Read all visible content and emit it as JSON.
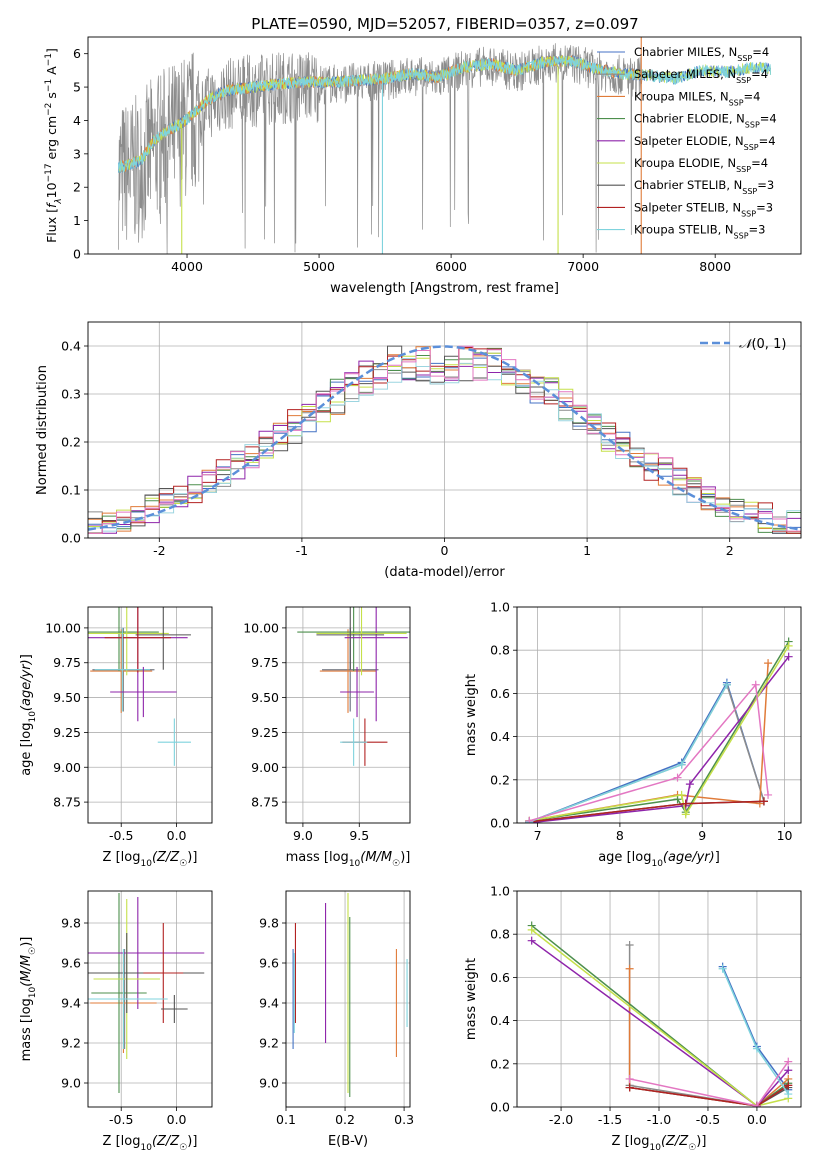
{
  "page_title": "PLATE=0590, MJD=52057, FIBERID=0357, z=0.097",
  "legend": {
    "models": [
      {
        "name": "Chabrier MILES",
        "nssp": "4",
        "color": "#4472c4"
      },
      {
        "name": "Salpeter MILES",
        "nssp": "4",
        "color": "#8c8c8c"
      },
      {
        "name": "Kroupa MILES",
        "nssp": "4",
        "color": "#e07b39"
      },
      {
        "name": "Chabrier ELODIE",
        "nssp": "4",
        "color": "#4d8f4d"
      },
      {
        "name": "Salpeter ELODIE",
        "nssp": "4",
        "color": "#8e24aa"
      },
      {
        "name": "Kroupa ELODIE",
        "nssp": "4",
        "color": "#c5e04a"
      },
      {
        "name": "Chabrier STELIB",
        "nssp": "3",
        "color": "#555555"
      },
      {
        "name": "Salpeter STELIB",
        "nssp": "3",
        "color": "#b22222"
      },
      {
        "name": "Kroupa STELIB",
        "nssp": "3",
        "color": "#7fd3dd"
      }
    ],
    "nssp_prefix": "N",
    "nssp_sub": "SSP",
    "nssp_eq": "="
  },
  "chart_data": [
    {
      "id": "spectrum",
      "type": "line",
      "xlabel": "wavelength [Angstrom, rest frame]",
      "ylabel": "Flux [f_λ 10^-17 erg cm^-2 s^-1 A^-1]",
      "xlim": [
        3250,
        8650
      ],
      "ylim": [
        0,
        6.5
      ],
      "xticks": [
        4000,
        5000,
        6000,
        7000,
        8000
      ],
      "yticks": [
        0,
        1,
        2,
        3,
        4,
        5,
        6
      ],
      "grid": false,
      "legend_position": "right",
      "continuum_knots": {
        "x": [
          3480,
          3550,
          3650,
          3750,
          3850,
          3950,
          4050,
          4150,
          4300,
          4500,
          4700,
          4900,
          5100,
          5300,
          5500,
          5700,
          5900,
          6100,
          6300,
          6500,
          6700,
          6900,
          7100,
          7300,
          7500,
          7700,
          7900,
          8100,
          8300,
          8500
        ],
        "y": [
          2.6,
          2.65,
          2.8,
          3.4,
          3.7,
          3.9,
          4.2,
          4.6,
          4.9,
          5.0,
          5.1,
          5.15,
          5.15,
          5.2,
          5.25,
          5.4,
          5.3,
          5.6,
          5.7,
          5.5,
          5.75,
          5.8,
          5.55,
          5.4,
          5.35,
          5.25,
          5.5,
          5.45,
          5.6,
          5.5
        ]
      },
      "noise_range": {
        "x": [
          3480,
          7450
        ],
        "ymax": 6.5
      },
      "spikes": [
        {
          "x": 3960,
          "y_from": 0,
          "y_to": 3.9,
          "series": "Kroupa ELODIE"
        },
        {
          "x": 5480,
          "y_from": 0,
          "y_to": 5.3,
          "series": "Kroupa STELIB"
        },
        {
          "x": 6810,
          "y_from": 0,
          "y_to": 5.6,
          "series": "Kroupa ELODIE"
        },
        {
          "x": 7440,
          "y_from": 0,
          "y_to": 6.5,
          "series": "Kroupa MILES"
        }
      ]
    },
    {
      "id": "residuals",
      "type": "histogram",
      "xlabel": "(data-model)/error",
      "ylabel": "Normed distribution",
      "xlim": [
        -2.5,
        2.5
      ],
      "ylim": [
        0,
        0.45
      ],
      "xticks": [
        -2,
        -1,
        0,
        1,
        2
      ],
      "yticks": [
        0.0,
        0.1,
        0.2,
        0.3,
        0.4
      ],
      "grid": true,
      "bins": {
        "start": -2.5,
        "width": 0.1,
        "count": 50
      },
      "reference_curve": {
        "name": "N(0,1)",
        "label_prefix": "𝒩",
        "label_args": "(0, 1)",
        "mean": 0,
        "sigma": 1,
        "color": "#5b8fd9",
        "style": "dashed"
      },
      "legend_position": "top-right"
    },
    {
      "id": "age-vs-Z",
      "type": "errorbar",
      "xlabel": "Z [log10(Z/Z☉)]",
      "xlabel_parts": {
        "pre": "Z [log",
        "sub": "10",
        "expr": "(Z/Z",
        "sun": "☉",
        "post": ")]"
      },
      "ylabel": "age [log10(age/yr)]",
      "ylabel_parts": {
        "pre": "age  [log",
        "sub": "10",
        "expr": "(age/yr)",
        "post": "]"
      },
      "xlim": [
        -0.8,
        0.32
      ],
      "ylim": [
        8.6,
        10.15
      ],
      "xticks": [
        -0.5,
        0.0
      ],
      "yticks": [
        8.75,
        9.0,
        9.25,
        9.5,
        9.75,
        10.0
      ],
      "grid": true,
      "points": [
        {
          "series": "Chabrier MILES",
          "x": -0.48,
          "y": 9.7,
          "xerr": 0.28,
          "yerr": 0.3
        },
        {
          "series": "Salpeter MILES",
          "x": -0.48,
          "y": 9.7,
          "xerr": 0.28,
          "yerr": 0.3
        },
        {
          "series": "Kroupa MILES",
          "x": -0.5,
          "y": 9.69,
          "xerr": 0.28,
          "yerr": 0.3
        },
        {
          "series": "Chabrier ELODIE",
          "x": -0.52,
          "y": 9.97,
          "xerr": 0.36,
          "yerr": 0.28
        },
        {
          "series": "Salpeter ELODIE",
          "x": -0.35,
          "y": 9.93,
          "xerr": 0.45,
          "yerr": 0.6
        },
        {
          "series": "Kroupa ELODIE",
          "x": -0.45,
          "y": 9.96,
          "xerr": 0.38,
          "yerr": 0.3
        },
        {
          "series": "Chabrier STELIB",
          "x": -0.12,
          "y": 9.95,
          "xerr": 0.25,
          "yerr": 0.25
        },
        {
          "series": "Salpeter STELIB",
          "x": -0.35,
          "y": 9.93,
          "xerr": 0.3,
          "yerr": 0.25
        },
        {
          "series": "Kroupa STELIB",
          "x": -0.02,
          "y": 9.18,
          "xerr": 0.15,
          "yerr": 0.17
        },
        {
          "series": "Kroupa STELIB",
          "x": -0.49,
          "y": 9.7,
          "xerr": 0.25,
          "yerr": 0.3
        },
        {
          "series": "Salpeter ELODIE",
          "x": -0.3,
          "y": 9.54,
          "xerr": 0.3,
          "yerr": 0.18
        }
      ]
    },
    {
      "id": "age-vs-mass",
      "type": "errorbar",
      "xlabel": "mass [log10(M/M☉)]",
      "xlabel_parts": {
        "pre": "mass [log",
        "sub": "10",
        "expr": "(M/M",
        "sun": "☉",
        "post": ")]"
      },
      "xlim": [
        8.85,
        9.95
      ],
      "ylim": [
        8.6,
        10.15
      ],
      "xticks": [
        9.0,
        9.5
      ],
      "yticks": [
        8.75,
        9.0,
        9.25,
        9.5,
        9.75,
        10.0
      ],
      "grid": true,
      "points": [
        {
          "series": "Chabrier MILES",
          "x": 9.42,
          "y": 9.7,
          "xerr": 0.25,
          "yerr": 0.3
        },
        {
          "series": "Salpeter MILES",
          "x": 9.42,
          "y": 9.7,
          "xerr": 0.25,
          "yerr": 0.3
        },
        {
          "series": "Kroupa MILES",
          "x": 9.4,
          "y": 9.69,
          "xerr": 0.25,
          "yerr": 0.3
        },
        {
          "series": "Chabrier ELODIE",
          "x": 9.45,
          "y": 9.97,
          "xerr": 0.5,
          "yerr": 0.28
        },
        {
          "series": "Salpeter ELODIE",
          "x": 9.65,
          "y": 9.93,
          "xerr": 0.28,
          "yerr": 0.6
        },
        {
          "series": "Kroupa ELODIE",
          "x": 9.52,
          "y": 9.96,
          "xerr": 0.4,
          "yerr": 0.3
        },
        {
          "series": "Chabrier STELIB",
          "x": 9.42,
          "y": 9.95,
          "xerr": 0.3,
          "yerr": 0.25
        },
        {
          "series": "Salpeter STELIB",
          "x": 9.55,
          "y": 9.18,
          "xerr": 0.2,
          "yerr": 0.17
        },
        {
          "series": "Kroupa STELIB",
          "x": 9.45,
          "y": 9.18,
          "xerr": 0.12,
          "yerr": 0.17
        },
        {
          "series": "Salpeter ELODIE",
          "x": 9.48,
          "y": 9.54,
          "xerr": 0.15,
          "yerr": 0.18
        }
      ]
    },
    {
      "id": "massweight-vs-age",
      "type": "line",
      "xlabel": "age [log10(age/yr)]",
      "xlabel_parts": {
        "pre": "age  [log",
        "sub": "10",
        "expr": "(age/yr)",
        "post": "]"
      },
      "ylabel": "mass weight",
      "xlim": [
        6.75,
        10.2
      ],
      "ylim": [
        0,
        1.0
      ],
      "xticks": [
        7,
        8,
        9,
        10
      ],
      "yticks": [
        0.0,
        0.2,
        0.4,
        0.6,
        0.8,
        1.0
      ],
      "grid": true,
      "series": [
        {
          "name": "Chabrier MILES",
          "x": [
            6.9,
            8.75,
            9.3,
            9.75
          ],
          "y": [
            0.005,
            0.28,
            0.65,
            0.1
          ]
        },
        {
          "name": "Salpeter MILES",
          "x": [
            6.9,
            8.75,
            9.3,
            9.75
          ],
          "y": [
            0.005,
            0.27,
            0.64,
            0.1
          ]
        },
        {
          "name": "Kroupa MILES",
          "x": [
            6.9,
            8.7,
            9.7,
            9.8
          ],
          "y": [
            0.01,
            0.13,
            0.09,
            0.74
          ]
        },
        {
          "name": "Chabrier ELODIE",
          "x": [
            6.9,
            8.7,
            8.8,
            10.05
          ],
          "y": [
            0.01,
            0.11,
            0.05,
            0.84
          ]
        },
        {
          "name": "Salpeter ELODIE",
          "x": [
            6.9,
            8.8,
            8.85,
            10.05
          ],
          "y": [
            0.001,
            0.08,
            0.18,
            0.77
          ]
        },
        {
          "name": "Kroupa ELODIE",
          "x": [
            6.9,
            8.75,
            8.8,
            10.05
          ],
          "y": [
            0.01,
            0.13,
            0.04,
            0.82
          ]
        },
        {
          "name": "Chabrier STELIB",
          "x": [
            6.9,
            8.8,
            9.75
          ],
          "y": [
            0.005,
            0.09,
            0.1
          ]
        },
        {
          "name": "Salpeter STELIB",
          "x": [
            6.9,
            8.8,
            9.75
          ],
          "y": [
            0.005,
            0.09,
            0.1
          ]
        },
        {
          "name": "Kroupa STELIB",
          "x": [
            6.9,
            8.75,
            9.3
          ],
          "y": [
            0.005,
            0.27,
            0.64
          ]
        },
        {
          "name": "Salpeter ELODIE",
          "x": [
            6.9,
            8.7,
            9.65,
            9.8
          ],
          "y": [
            0.01,
            0.21,
            0.64,
            0.13
          ]
        }
      ]
    },
    {
      "id": "mass-vs-Z",
      "type": "errorbar",
      "xlabel": "Z [log10(Z/Z☉)]",
      "xlabel_parts": {
        "pre": "Z [log",
        "sub": "10",
        "expr": "(Z/Z",
        "sun": "☉",
        "post": ")]"
      },
      "ylabel": "mass [log10(M/M☉)]",
      "ylabel_parts": {
        "pre": "mass [log",
        "sub": "10",
        "expr": "(M/M",
        "sun": "☉",
        "post": ")]"
      },
      "xlim": [
        -0.8,
        0.32
      ],
      "ylim": [
        8.88,
        9.96
      ],
      "xticks": [
        -0.5,
        0.0
      ],
      "yticks": [
        9.0,
        9.2,
        9.4,
        9.6,
        9.8
      ],
      "grid": true,
      "points": [
        {
          "series": "Chabrier MILES",
          "x": -0.47,
          "y": 9.42,
          "xerr": 0.3,
          "yerr": 0.25
        },
        {
          "series": "Salpeter MILES",
          "x": -0.47,
          "y": 9.42,
          "xerr": 0.3,
          "yerr": 0.25
        },
        {
          "series": "Kroupa MILES",
          "x": -0.48,
          "y": 9.4,
          "xerr": 0.3,
          "yerr": 0.25
        },
        {
          "series": "Chabrier ELODIE",
          "x": -0.52,
          "y": 9.45,
          "xerr": 0.25,
          "yerr": 0.5
        },
        {
          "series": "Salpeter ELODIE",
          "x": -0.35,
          "y": 9.65,
          "xerr": 0.6,
          "yerr": 0.28
        },
        {
          "series": "Kroupa ELODIE",
          "x": -0.45,
          "y": 9.52,
          "xerr": 0.3,
          "yerr": 0.4
        },
        {
          "series": "Chabrier STELIB",
          "x": -0.45,
          "y": 9.55,
          "xerr": 0.7,
          "yerr": 0.2
        },
        {
          "series": "Salpeter STELIB",
          "x": -0.12,
          "y": 9.55,
          "xerr": 0.18,
          "yerr": 0.25
        },
        {
          "series": "Kroupa STELIB",
          "x": -0.48,
          "y": 9.42,
          "xerr": 0.4,
          "yerr": 0.25
        },
        {
          "series": "Chabrier STELIB",
          "x": -0.02,
          "y": 9.37,
          "xerr": 0.12,
          "yerr": 0.07
        }
      ]
    },
    {
      "id": "mass-vs-ebv",
      "type": "errorbar",
      "xlabel": "E(B-V)",
      "xlim": [
        0.1,
        0.31
      ],
      "ylim": [
        8.88,
        9.96
      ],
      "xticks": [
        0.1,
        0.2,
        0.3
      ],
      "yticks": [
        9.0,
        9.2,
        9.4,
        9.6,
        9.8
      ],
      "grid": true,
      "points": [
        {
          "series": "Chabrier MILES",
          "x": 0.112,
          "y": 9.42,
          "xerr": 0,
          "yerr": 0.25
        },
        {
          "series": "Kroupa MILES",
          "x": 0.287,
          "y": 9.4,
          "xerr": 0,
          "yerr": 0.27
        },
        {
          "series": "Chabrier ELODIE",
          "x": 0.208,
          "y": 9.38,
          "xerr": 0,
          "yerr": 0.45
        },
        {
          "series": "Salpeter ELODIE",
          "x": 0.167,
          "y": 9.55,
          "xerr": 0,
          "yerr": 0.35
        },
        {
          "series": "Kroupa ELODIE",
          "x": 0.205,
          "y": 9.45,
          "xerr": 0,
          "yerr": 0.5
        },
        {
          "series": "Salpeter STELIB",
          "x": 0.116,
          "y": 9.55,
          "xerr": 0,
          "yerr": 0.25
        },
        {
          "series": "Kroupa STELIB",
          "x": 0.114,
          "y": 9.45,
          "xerr": 0,
          "yerr": 0.2
        },
        {
          "series": "Kroupa STELIB",
          "x": 0.305,
          "y": 9.45,
          "xerr": 0,
          "yerr": 0.17
        }
      ]
    },
    {
      "id": "massweight-vs-Z",
      "type": "line",
      "xlabel": "Z [log10(Z/Z☉)]",
      "xlabel_parts": {
        "pre": "Z [log",
        "sub": "10",
        "expr": "(Z/Z",
        "sun": "☉",
        "post": ")]"
      },
      "ylabel": "mass weight",
      "xlim": [
        -2.45,
        0.45
      ],
      "ylim": [
        0,
        1.0
      ],
      "xticks": [
        -2.0,
        -1.5,
        -1.0,
        -0.5,
        0.0
      ],
      "yticks": [
        0.0,
        0.2,
        0.4,
        0.6,
        0.8,
        1.0
      ],
      "grid": true,
      "series": [
        {
          "name": "Chabrier MILES",
          "x": [
            -0.35,
            0.0,
            0.32
          ],
          "y": [
            0.65,
            0.28,
            0.08
          ]
        },
        {
          "name": "Salpeter MILES",
          "x": [
            -1.3,
            -1.3,
            0.0,
            0.32
          ],
          "y": [
            0.75,
            0.1,
            0.005,
            0.1
          ]
        },
        {
          "name": "Kroupa MILES",
          "x": [
            -1.3,
            -1.3,
            0.0,
            0.32
          ],
          "y": [
            0.64,
            0.09,
            0.005,
            0.13
          ]
        },
        {
          "name": "Chabrier ELODIE",
          "x": [
            -2.3,
            0.0,
            0.32
          ],
          "y": [
            0.84,
            0.005,
            0.11
          ]
        },
        {
          "name": "Salpeter ELODIE",
          "x": [
            -2.3,
            0.0,
            0.32
          ],
          "y": [
            0.77,
            0.005,
            0.17
          ]
        },
        {
          "name": "Kroupa ELODIE",
          "x": [
            -2.3,
            0.0,
            0.32
          ],
          "y": [
            0.82,
            0.005,
            0.04
          ]
        },
        {
          "name": "Chabrier STELIB",
          "x": [
            -1.3,
            0.0,
            0.32
          ],
          "y": [
            0.09,
            0.005,
            0.09
          ]
        },
        {
          "name": "Salpeter STELIB",
          "x": [
            -1.3,
            0.0,
            0.32
          ],
          "y": [
            0.09,
            0.005,
            0.1
          ]
        },
        {
          "name": "Kroupa STELIB",
          "x": [
            -0.35,
            0.0,
            0.32
          ],
          "y": [
            0.64,
            0.27,
            0.06
          ]
        },
        {
          "name": "Salpeter ELODIE",
          "x": [
            -1.3,
            0.0,
            0.32
          ],
          "y": [
            0.13,
            0.005,
            0.21
          ]
        }
      ]
    }
  ]
}
